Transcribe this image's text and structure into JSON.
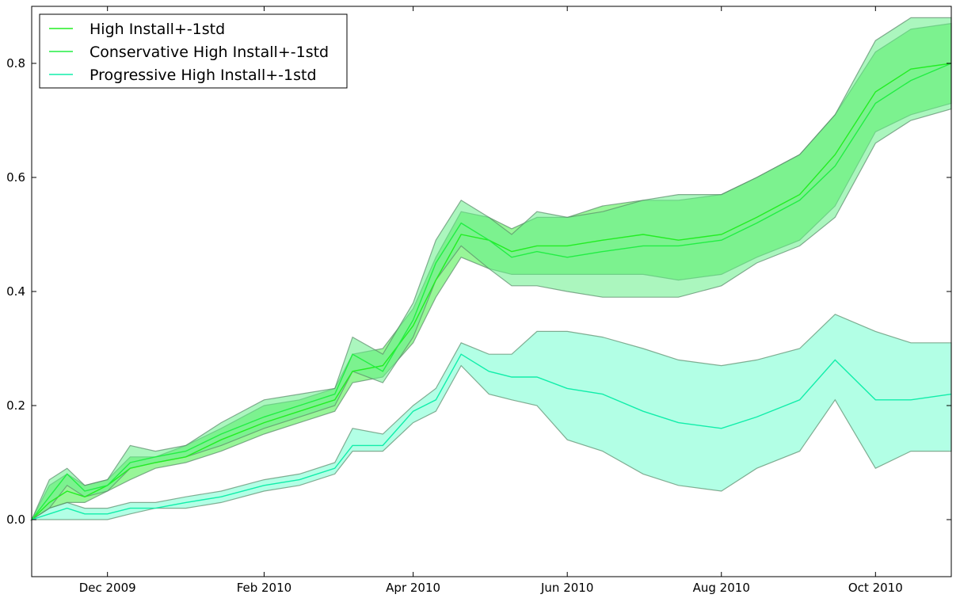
{
  "chart_data": {
    "type": "line",
    "title": "",
    "xlabel": "",
    "ylabel": "",
    "x_start": "2009-11-01",
    "x_end": "2010-10-31",
    "ylim": [
      -0.1,
      0.9
    ],
    "yticks": [
      0.0,
      0.2,
      0.4,
      0.6,
      0.8
    ],
    "ytick_labels": [
      "0.0",
      "0.2",
      "0.4",
      "0.6",
      "0.8"
    ],
    "xticks": [
      {
        "date": "2009-12-01",
        "label": "Dec 2009"
      },
      {
        "date": "2010-02-01",
        "label": "Feb 2010"
      },
      {
        "date": "2010-04-01",
        "label": "Apr 2010"
      },
      {
        "date": "2010-06-01",
        "label": "Jun 2010"
      },
      {
        "date": "2010-08-01",
        "label": "Aug 2010"
      },
      {
        "date": "2010-10-01",
        "label": "Oct 2010"
      }
    ],
    "legend_position": "top-left",
    "grid": false,
    "series": [
      {
        "name": "High Install+-1std",
        "color": "#22ee22",
        "fill": "#44ee44",
        "points": [
          [
            "2009-11-01",
            0.0,
            0.0,
            0.0
          ],
          [
            "2009-11-08",
            0.03,
            0.02,
            0.06
          ],
          [
            "2009-11-15",
            0.05,
            0.03,
            0.08
          ],
          [
            "2009-11-22",
            0.04,
            0.03,
            0.06
          ],
          [
            "2009-12-01",
            0.06,
            0.05,
            0.07
          ],
          [
            "2009-12-10",
            0.09,
            0.07,
            0.11
          ],
          [
            "2009-12-20",
            0.1,
            0.09,
            0.11
          ],
          [
            "2010-01-01",
            0.11,
            0.1,
            0.13
          ],
          [
            "2010-01-15",
            0.14,
            0.12,
            0.16
          ],
          [
            "2010-02-01",
            0.17,
            0.15,
            0.2
          ],
          [
            "2010-02-15",
            0.19,
            0.17,
            0.21
          ],
          [
            "2010-03-01",
            0.21,
            0.19,
            0.23
          ],
          [
            "2010-03-08",
            0.26,
            0.24,
            0.29
          ],
          [
            "2010-03-20",
            0.27,
            0.25,
            0.3
          ],
          [
            "2010-04-01",
            0.34,
            0.31,
            0.37
          ],
          [
            "2010-04-10",
            0.42,
            0.39,
            0.46
          ],
          [
            "2010-04-20",
            0.5,
            0.46,
            0.54
          ],
          [
            "2010-05-01",
            0.49,
            0.44,
            0.53
          ],
          [
            "2010-05-10",
            0.47,
            0.43,
            0.51
          ],
          [
            "2010-05-20",
            0.48,
            0.43,
            0.53
          ],
          [
            "2010-06-01",
            0.48,
            0.43,
            0.53
          ],
          [
            "2010-06-15",
            0.49,
            0.43,
            0.55
          ],
          [
            "2010-07-01",
            0.5,
            0.43,
            0.56
          ],
          [
            "2010-07-15",
            0.49,
            0.42,
            0.56
          ],
          [
            "2010-08-01",
            0.5,
            0.43,
            0.57
          ],
          [
            "2010-08-15",
            0.53,
            0.46,
            0.6
          ],
          [
            "2010-09-01",
            0.57,
            0.49,
            0.64
          ],
          [
            "2010-09-15",
            0.64,
            0.55,
            0.71
          ],
          [
            "2010-10-01",
            0.75,
            0.68,
            0.82
          ],
          [
            "2010-10-15",
            0.79,
            0.71,
            0.86
          ],
          [
            "2010-10-31",
            0.8,
            0.73,
            0.87
          ]
        ]
      },
      {
        "name": "Conservative High Install+-1std",
        "color": "#22ee44",
        "fill": "#66ee88",
        "points": [
          [
            "2009-11-01",
            0.0,
            0.0,
            0.0
          ],
          [
            "2009-11-08",
            0.04,
            0.02,
            0.07
          ],
          [
            "2009-11-15",
            0.08,
            0.06,
            0.09
          ],
          [
            "2009-11-22",
            0.05,
            0.04,
            0.06
          ],
          [
            "2009-12-01",
            0.06,
            0.05,
            0.07
          ],
          [
            "2009-12-10",
            0.1,
            0.09,
            0.13
          ],
          [
            "2009-12-20",
            0.11,
            0.1,
            0.12
          ],
          [
            "2010-01-01",
            0.12,
            0.11,
            0.13
          ],
          [
            "2010-01-15",
            0.15,
            0.13,
            0.17
          ],
          [
            "2010-02-01",
            0.18,
            0.16,
            0.21
          ],
          [
            "2010-02-15",
            0.2,
            0.18,
            0.22
          ],
          [
            "2010-03-01",
            0.22,
            0.2,
            0.23
          ],
          [
            "2010-03-08",
            0.29,
            0.26,
            0.32
          ],
          [
            "2010-03-20",
            0.26,
            0.24,
            0.29
          ],
          [
            "2010-04-01",
            0.35,
            0.32,
            0.38
          ],
          [
            "2010-04-10",
            0.45,
            0.42,
            0.49
          ],
          [
            "2010-04-20",
            0.52,
            0.48,
            0.56
          ],
          [
            "2010-05-01",
            0.49,
            0.44,
            0.53
          ],
          [
            "2010-05-10",
            0.46,
            0.41,
            0.5
          ],
          [
            "2010-05-20",
            0.47,
            0.41,
            0.54
          ],
          [
            "2010-06-01",
            0.46,
            0.4,
            0.53
          ],
          [
            "2010-06-15",
            0.47,
            0.39,
            0.54
          ],
          [
            "2010-07-01",
            0.48,
            0.39,
            0.56
          ],
          [
            "2010-07-15",
            0.48,
            0.39,
            0.57
          ],
          [
            "2010-08-01",
            0.49,
            0.41,
            0.57
          ],
          [
            "2010-08-15",
            0.52,
            0.45,
            0.6
          ],
          [
            "2010-09-01",
            0.56,
            0.48,
            0.64
          ],
          [
            "2010-09-15",
            0.62,
            0.53,
            0.71
          ],
          [
            "2010-10-01",
            0.73,
            0.66,
            0.84
          ],
          [
            "2010-10-15",
            0.77,
            0.7,
            0.88
          ],
          [
            "2010-10-31",
            0.8,
            0.72,
            0.88
          ]
        ]
      },
      {
        "name": "Progressive High Install+-1std",
        "color": "#11eeaa",
        "fill": "#66ffcc",
        "points": [
          [
            "2009-11-01",
            0.0,
            0.0,
            0.0
          ],
          [
            "2009-11-08",
            0.01,
            0.0,
            0.02
          ],
          [
            "2009-11-15",
            0.02,
            0.0,
            0.03
          ],
          [
            "2009-11-22",
            0.01,
            0.0,
            0.02
          ],
          [
            "2009-12-01",
            0.01,
            0.0,
            0.02
          ],
          [
            "2009-12-10",
            0.02,
            0.01,
            0.03
          ],
          [
            "2009-12-20",
            0.02,
            0.02,
            0.03
          ],
          [
            "2010-01-01",
            0.03,
            0.02,
            0.04
          ],
          [
            "2010-01-15",
            0.04,
            0.03,
            0.05
          ],
          [
            "2010-02-01",
            0.06,
            0.05,
            0.07
          ],
          [
            "2010-02-15",
            0.07,
            0.06,
            0.08
          ],
          [
            "2010-03-01",
            0.09,
            0.08,
            0.1
          ],
          [
            "2010-03-08",
            0.13,
            0.12,
            0.16
          ],
          [
            "2010-03-20",
            0.13,
            0.12,
            0.15
          ],
          [
            "2010-04-01",
            0.19,
            0.17,
            0.2
          ],
          [
            "2010-04-10",
            0.21,
            0.19,
            0.23
          ],
          [
            "2010-04-20",
            0.29,
            0.27,
            0.31
          ],
          [
            "2010-05-01",
            0.26,
            0.22,
            0.29
          ],
          [
            "2010-05-10",
            0.25,
            0.21,
            0.29
          ],
          [
            "2010-05-20",
            0.25,
            0.2,
            0.33
          ],
          [
            "2010-06-01",
            0.23,
            0.14,
            0.33
          ],
          [
            "2010-06-15",
            0.22,
            0.12,
            0.32
          ],
          [
            "2010-07-01",
            0.19,
            0.08,
            0.3
          ],
          [
            "2010-07-15",
            0.17,
            0.06,
            0.28
          ],
          [
            "2010-08-01",
            0.16,
            0.05,
            0.27
          ],
          [
            "2010-08-15",
            0.18,
            0.09,
            0.28
          ],
          [
            "2010-09-01",
            0.21,
            0.12,
            0.3
          ],
          [
            "2010-09-15",
            0.28,
            0.21,
            0.36
          ],
          [
            "2010-10-01",
            0.21,
            0.09,
            0.33
          ],
          [
            "2010-10-15",
            0.21,
            0.12,
            0.31
          ],
          [
            "2010-10-31",
            0.22,
            0.12,
            0.31
          ]
        ]
      }
    ]
  }
}
